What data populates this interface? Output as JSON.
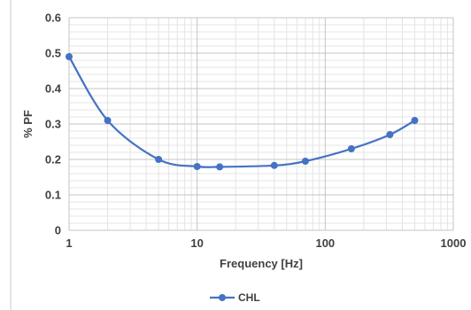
{
  "chart_data": {
    "type": "line",
    "xscale": "log",
    "xlim": [
      1,
      1000
    ],
    "ylim": [
      0,
      0.6
    ],
    "xlabel": "Frequency [Hz]",
    "ylabel": "% PF",
    "xticks": [
      1,
      10,
      100,
      1000
    ],
    "xtick_labels": [
      "1",
      "10",
      "100",
      "1000"
    ],
    "yticks": [
      0,
      0.1,
      0.2,
      0.3,
      0.4,
      0.5,
      0.6
    ],
    "ytick_labels": [
      "0",
      "0.1",
      "0.2",
      "0.3",
      "0.4",
      "0.5",
      "0.6"
    ],
    "grid": true,
    "legend_position": "bottom",
    "series": [
      {
        "name": "CHL",
        "color": "#4472C4",
        "x": [
          1,
          2,
          5,
          10,
          15,
          40,
          70,
          160,
          320,
          500
        ],
        "y": [
          0.49,
          0.31,
          0.2,
          0.18,
          0.179,
          0.183,
          0.195,
          0.23,
          0.27,
          0.31
        ]
      }
    ]
  }
}
